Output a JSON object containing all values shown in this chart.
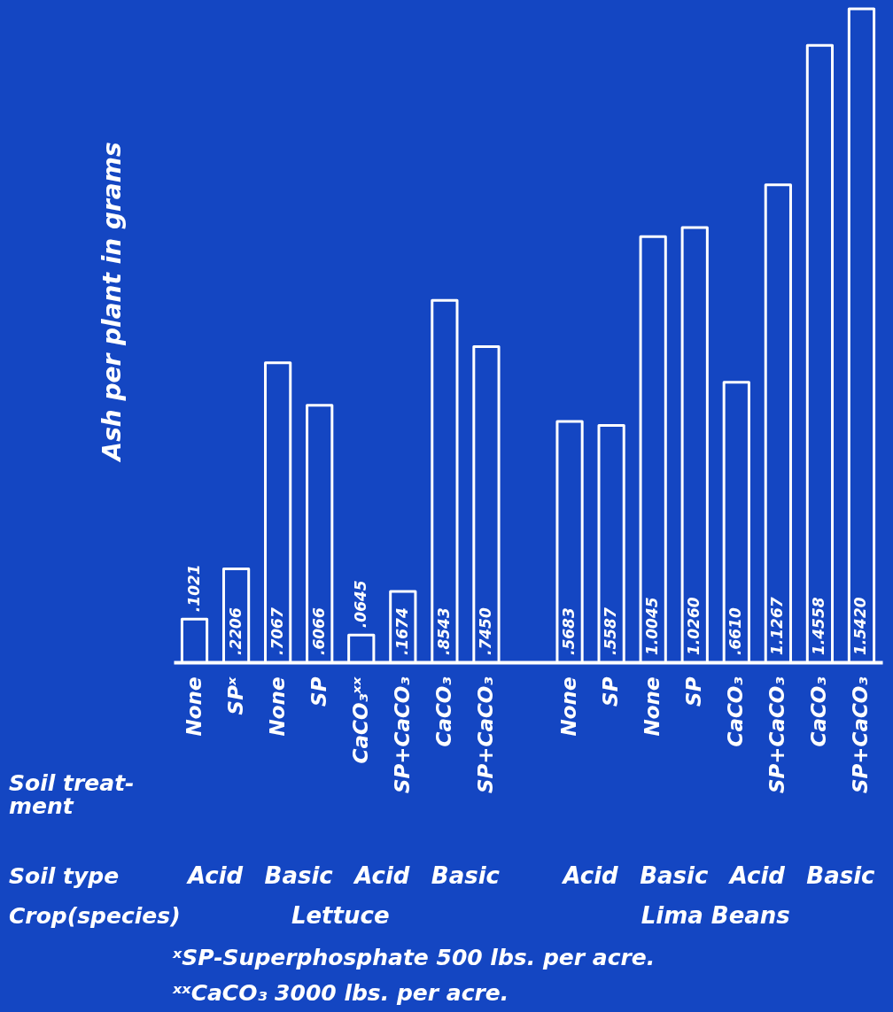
{
  "chart_data": {
    "type": "bar",
    "ylabel": "Ash per plant in grams",
    "categories": [
      "None",
      "SPˣ",
      "None",
      "SP",
      "CaCO₃ˣˣ",
      "SP+CaCO₃",
      "CaCO₃",
      "SP+CaCO₃",
      null,
      "None",
      "SP",
      "None",
      "SP",
      "CaCO₃",
      "SP+CaCO₃",
      "CaCO₃",
      "SP+CaCO₃"
    ],
    "series": [
      {
        "color": "#ffffff",
        "values": [
          0.1021,
          0.2206,
          0.7067,
          0.6066,
          0.0645,
          0.1674,
          0.8543,
          0.745,
          null,
          0.5683,
          0.5587,
          1.0045,
          1.026,
          0.661,
          1.1267,
          1.4558,
          1.542
        ],
        "value_labels": [
          ".1021",
          ".2206",
          ".7067",
          ".6066",
          ".0645",
          ".1674",
          ".8543",
          ".7450",
          null,
          ".5683",
          ".5587",
          "1.0045",
          "1.0260",
          ".6610",
          "1.1267",
          "1.4558",
          "1.5420"
        ]
      }
    ],
    "annotations": [
      "Soil treat-ment",
      "Soil type",
      "Acid",
      "Basic",
      "Acid",
      "Basic",
      "Acid",
      "Basic",
      "Acid",
      "Basic",
      "Crop(species)",
      "Lettuce",
      "Lima Beans",
      "ˣSP-Superphosphate 500 lbs. per acre.",
      "ˣˣCaCO₃ 3000 lbs. per acre."
    ],
    "grid": false
  }
}
